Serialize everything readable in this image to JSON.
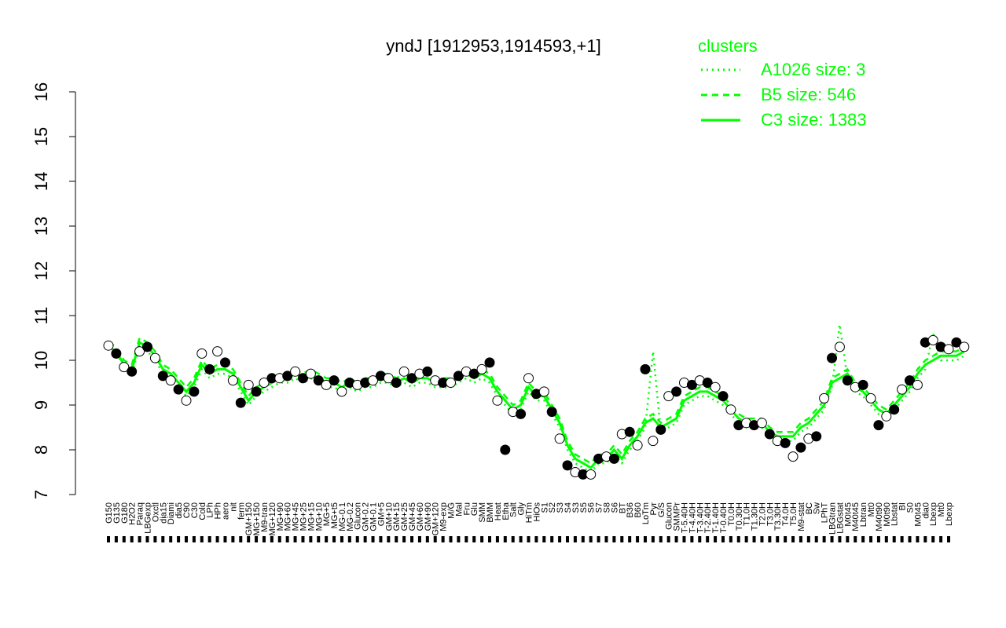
{
  "chart_data": {
    "type": "line",
    "title": "yndJ [1912953,1914593,+1]",
    "xlabel": "",
    "ylabel": "",
    "ylim": [
      7,
      16
    ],
    "y_ticks": [
      "7",
      "8",
      "9",
      "10",
      "11",
      "12",
      "13",
      "14",
      "15",
      "16"
    ],
    "grid": false,
    "legend_placement": "top-right",
    "legend_title": "clusters",
    "colors": {
      "accent": "#00ff00",
      "points_open": "#ffffff",
      "points_filled": "#000000",
      "axis": "#000000"
    },
    "legend": [
      {
        "label": "A1026 size: 3",
        "style": "dotted"
      },
      {
        "label": "B5 size: 546",
        "style": "dashed"
      },
      {
        "label": "C3 size: 1383",
        "style": "solid"
      }
    ],
    "tick_labels": [
      "G150",
      "G135",
      "G180",
      "H2O2",
      "Paraq",
      "LBGexp",
      "Oxctl",
      "dia15",
      "Diami",
      "dia5",
      "C90",
      "C30",
      "Cold",
      "LPh",
      "HPh",
      "aero",
      "nit",
      "ferm",
      "GM+150",
      "MG+150",
      "M9-tran",
      "MG+120",
      "MG+90",
      "MG+60",
      "MG+45",
      "MG+25",
      "MG+15",
      "MG+10",
      "MG+5",
      "MG+t5",
      "MG-0.1",
      "MG-0.2",
      "Glucon",
      "GM-0.2",
      "GM-0.1",
      "GM+5",
      "GM+10",
      "GM+15",
      "GM+25",
      "GM+45",
      "GM+60",
      "GM+90",
      "GM+120",
      "M9-exp",
      "M/G",
      "Mal",
      "Fru",
      "Glu",
      "SMM",
      "BMM",
      "Heat",
      "Etha",
      "Salt",
      "Gly",
      "HiTm",
      "HiOs",
      "S1",
      "S2",
      "S3",
      "S4",
      "S3",
      "S5",
      "S6",
      "S7",
      "S8",
      "S6",
      "BT",
      "B36",
      "B60",
      "LoTm",
      "Pyr",
      "G/S",
      "Glucon",
      "SMMPr",
      "T-5.40H",
      "T-4.40H",
      "T-3.40H",
      "T-2.40H",
      "T-1.40H",
      "T-0.40H",
      "T0.0H",
      "T0.30H",
      "T1.0H",
      "T1.30H",
      "T2.0H",
      "T3.0H",
      "T3.30H",
      "T4.0H",
      "T5.0H",
      "M9-stat",
      "BC",
      "Sw",
      "LPhT",
      "LBGtran",
      "LBGstat",
      "M0t45",
      "M40t45",
      "Lbtran",
      "Mt0",
      "M40t90",
      "M0t90",
      "Lbstat",
      "BI",
      "S0",
      "M0t45",
      "dia0",
      "Lbexp",
      "Mt0",
      "Lbexp"
    ],
    "series": [
      {
        "style": "solid",
        "values": [
          10.3,
          10.2,
          9.9,
          9.8,
          10.4,
          10.3,
          10.1,
          9.8,
          9.7,
          9.5,
          9.3,
          9.5,
          9.9,
          9.7,
          9.8,
          9.8,
          9.7,
          9.4,
          9.1,
          9.3,
          9.4,
          9.5,
          9.6,
          9.6,
          9.7,
          9.6,
          9.7,
          9.6,
          9.5,
          9.5,
          9.4,
          9.5,
          9.4,
          9.5,
          9.5,
          9.6,
          9.6,
          9.5,
          9.6,
          9.5,
          9.6,
          9.6,
          9.5,
          9.5,
          9.5,
          9.6,
          9.7,
          9.6,
          9.7,
          9.6,
          9.3,
          9.1,
          8.9,
          9.0,
          9.4,
          9.2,
          9.2,
          8.9,
          8.6,
          8.1,
          7.8,
          7.7,
          7.6,
          7.8,
          7.8,
          8.0,
          7.8,
          8.1,
          8.3,
          8.6,
          8.7,
          8.5,
          8.6,
          8.7,
          9.1,
          9.2,
          9.3,
          9.3,
          9.2,
          9.1,
          8.9,
          8.7,
          8.6,
          8.6,
          8.6,
          8.4,
          8.3,
          8.3,
          8.3,
          8.5,
          8.6,
          8.8,
          9.0,
          9.5,
          9.6,
          9.7,
          9.4,
          9.3,
          9.1,
          8.9,
          8.8,
          9.0,
          9.2,
          9.4,
          9.7,
          9.9,
          10.0,
          10.1,
          10.1,
          10.1,
          10.2
        ]
      },
      {
        "style": "dashed",
        "values": [
          10.4,
          10.3,
          10.0,
          9.9,
          10.5,
          10.4,
          10.2,
          9.9,
          9.8,
          9.6,
          9.4,
          9.6,
          10.0,
          9.8,
          9.9,
          9.9,
          9.8,
          9.5,
          9.2,
          9.4,
          9.5,
          9.6,
          9.7,
          9.7,
          9.8,
          9.7,
          9.8,
          9.7,
          9.6,
          9.6,
          9.5,
          9.6,
          9.5,
          9.6,
          9.6,
          9.7,
          9.7,
          9.6,
          9.7,
          9.6,
          9.7,
          9.7,
          9.6,
          9.6,
          9.6,
          9.7,
          9.8,
          9.7,
          9.8,
          9.7,
          9.4,
          9.2,
          9.0,
          9.1,
          9.5,
          9.3,
          9.3,
          9.0,
          8.7,
          8.2,
          7.9,
          7.8,
          7.7,
          7.9,
          7.9,
          8.1,
          7.9,
          8.2,
          8.4,
          8.7,
          8.8,
          8.6,
          8.7,
          8.8,
          9.2,
          9.3,
          9.4,
          9.4,
          9.3,
          9.2,
          9.0,
          8.8,
          8.7,
          8.7,
          8.7,
          8.5,
          8.4,
          8.4,
          8.4,
          8.6,
          8.7,
          8.9,
          9.1,
          9.6,
          9.7,
          9.8,
          9.5,
          9.4,
          9.2,
          9.0,
          8.9,
          9.1,
          9.3,
          9.5,
          9.8,
          10.0,
          10.1,
          10.2,
          10.2,
          10.2,
          10.3
        ]
      },
      {
        "style": "dotted",
        "values": [
          10.3,
          10.2,
          9.8,
          9.7,
          10.3,
          10.2,
          10.0,
          9.7,
          9.6,
          9.4,
          9.2,
          9.4,
          9.8,
          9.6,
          9.7,
          9.7,
          9.6,
          9.3,
          9.0,
          9.2,
          9.3,
          9.4,
          9.5,
          9.5,
          9.6,
          9.5,
          9.6,
          9.5,
          9.4,
          9.4,
          9.3,
          9.4,
          9.3,
          9.4,
          9.4,
          9.5,
          9.5,
          9.4,
          9.5,
          9.4,
          9.5,
          9.5,
          9.4,
          9.4,
          9.4,
          9.5,
          9.6,
          9.5,
          9.6,
          9.5,
          9.2,
          9.0,
          8.8,
          8.9,
          9.3,
          9.1,
          9.1,
          8.8,
          8.5,
          8.0,
          7.7,
          7.6,
          7.5,
          7.7,
          7.7,
          7.9,
          7.7,
          8.0,
          8.2,
          8.5,
          10.2,
          8.4,
          8.5,
          8.6,
          9.0,
          9.1,
          9.2,
          9.2,
          9.1,
          9.0,
          8.8,
          8.6,
          8.5,
          8.5,
          8.5,
          8.3,
          8.2,
          8.2,
          8.2,
          8.4,
          8.5,
          8.7,
          8.9,
          9.4,
          10.8,
          9.6,
          9.3,
          9.2,
          9.0,
          8.8,
          8.7,
          8.9,
          9.1,
          9.3,
          9.6,
          9.8,
          10.6,
          10.0,
          10.0,
          10.0,
          10.1
        ]
      }
    ],
    "points": [
      10.33,
      10.15,
      9.85,
      9.75,
      10.2,
      10.3,
      10.05,
      9.65,
      9.55,
      9.35,
      9.1,
      9.3,
      10.15,
      9.8,
      10.2,
      9.95,
      9.55,
      9.05,
      9.45,
      9.3,
      9.5,
      9.6,
      9.6,
      9.65,
      9.75,
      9.6,
      9.7,
      9.55,
      9.45,
      9.55,
      9.3,
      9.5,
      9.45,
      9.5,
      9.55,
      9.65,
      9.6,
      9.5,
      9.75,
      9.6,
      9.7,
      9.75,
      9.55,
      9.5,
      9.5,
      9.65,
      9.75,
      9.7,
      9.8,
      9.95,
      9.1,
      8.0,
      8.85,
      8.8,
      9.6,
      9.25,
      9.3,
      8.85,
      8.25,
      7.65,
      7.5,
      7.45,
      7.45,
      7.8,
      7.85,
      7.8,
      8.35,
      8.4,
      8.1,
      9.8,
      8.2,
      8.45,
      9.2,
      9.3,
      9.5,
      9.45,
      9.55,
      9.5,
      9.4,
      9.2,
      8.9,
      8.55,
      8.6,
      8.55,
      8.6,
      8.35,
      8.2,
      8.15,
      7.85,
      8.05,
      8.25,
      8.3,
      9.15,
      10.05,
      10.3,
      9.55,
      9.4,
      9.45,
      9.15,
      8.55,
      8.75,
      8.9,
      9.35,
      9.55,
      9.45,
      10.4,
      10.45,
      10.3,
      10.25,
      10.4,
      10.3
    ]
  }
}
